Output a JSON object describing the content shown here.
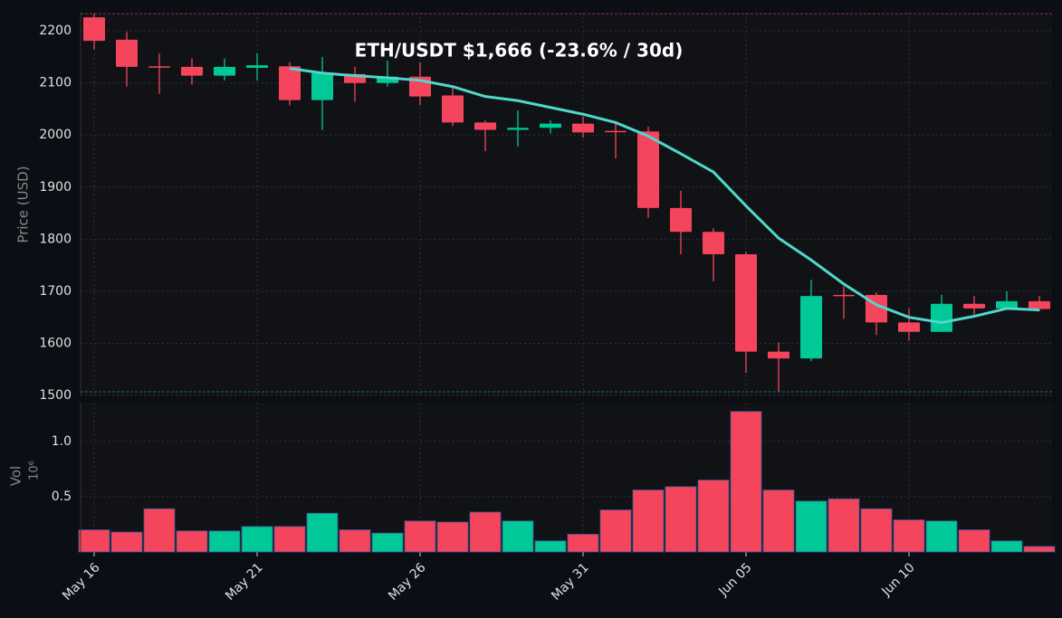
{
  "chart_data": {
    "type": "candlestick",
    "title": "ETH/USDT   $1,666   (-23.6% / 30d)",
    "ylabel": "Price (USD)",
    "categories": [
      "May 16",
      null,
      null,
      null,
      null,
      "May 21",
      null,
      null,
      null,
      null,
      "May 26",
      null,
      null,
      null,
      null,
      "May 31",
      null,
      null,
      null,
      null,
      "Jun 05",
      null,
      null,
      null,
      null,
      "Jun 10",
      null,
      null,
      null,
      null
    ],
    "open": [
      2226,
      2183,
      2132,
      2131,
      2114,
      2129,
      2132,
      2067,
      2117,
      2100,
      2112,
      2076,
      2024,
      2010,
      2014,
      2022,
      2008,
      2007,
      1860,
      1814,
      1771,
      1584,
      1571,
      1693,
      1693,
      1640,
      1622,
      1676,
      1667,
      1681
    ],
    "high": [
      2233,
      2198,
      2157,
      2147,
      2147,
      2157,
      2140,
      2150,
      2131,
      2143,
      2140,
      2095,
      2028,
      2047,
      2028,
      2036,
      2022,
      2016,
      1893,
      1821,
      1776,
      1602,
      1722,
      1709,
      1698,
      1667,
      1693,
      1691,
      1700,
      1691
    ],
    "low": [
      2164,
      2093,
      2079,
      2097,
      2105,
      2105,
      2057,
      2010,
      2064,
      2093,
      2057,
      2017,
      1969,
      1978,
      2003,
      1995,
      1955,
      1841,
      1771,
      1719,
      1543,
      1507,
      1566,
      1647,
      1616,
      1605,
      1622,
      1655,
      1667,
      1662
    ],
    "close": [
      2181,
      2131,
      2130,
      2114,
      2131,
      2134,
      2067,
      2119,
      2100,
      2112,
      2074,
      2024,
      2010,
      2014,
      2022,
      2005,
      2006,
      1860,
      1814,
      1771,
      1584,
      1571,
      1691,
      1691,
      1640,
      1622,
      1676,
      1667,
      1681,
      1666
    ],
    "up_color": "#00c896",
    "down_color": "#f5455c",
    "moving_average": {
      "color": "#4fd8cc",
      "values": [
        null,
        null,
        null,
        null,
        null,
        null,
        2128,
        2119,
        2114,
        2110,
        2105,
        2093,
        2074,
        2066,
        2053,
        2040,
        2024,
        1998,
        1964,
        1929,
        1864,
        1802,
        1760,
        1714,
        1674,
        1650,
        1640,
        1652,
        1667,
        1664
      ]
    },
    "ylim": [
      1500,
      2235
    ],
    "yticks": [
      1500,
      1600,
      1700,
      1800,
      1900,
      2000,
      2100,
      2200
    ],
    "grid": true,
    "volume": {
      "ylabel": "Vol",
      "offset_label": "10⁶",
      "values": [
        0.2,
        0.18,
        0.39,
        0.19,
        0.19,
        0.23,
        0.23,
        0.35,
        0.2,
        0.17,
        0.28,
        0.27,
        0.36,
        0.28,
        0.1,
        0.16,
        0.38,
        0.56,
        0.59,
        0.65,
        1.27,
        0.56,
        0.46,
        0.48,
        0.39,
        0.29,
        0.28,
        0.2,
        0.1,
        0.05
      ],
      "ylim": [
        0,
        1.35
      ],
      "yticks": [
        0.5,
        {
          "value": 1.0,
          "label": "1.0"
        }
      ]
    }
  }
}
